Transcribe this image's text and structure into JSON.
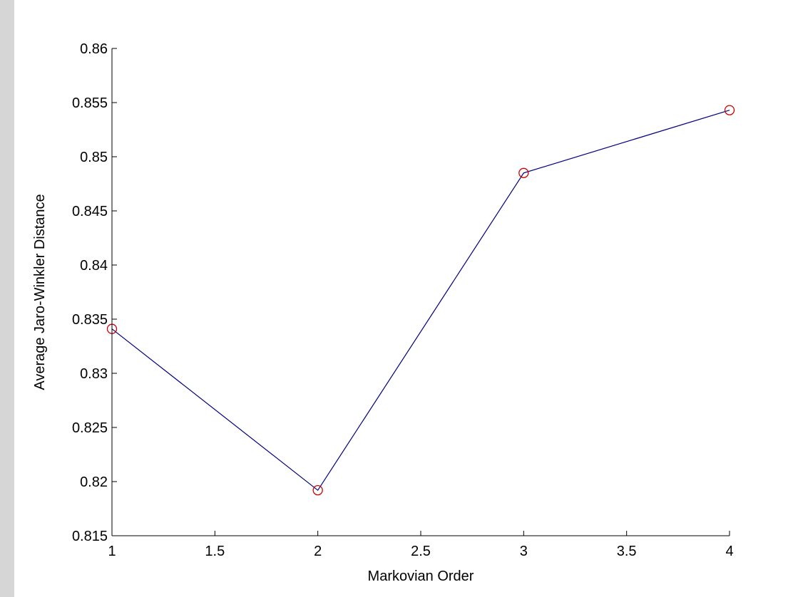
{
  "figure": {
    "background_color": "#d6d6d6",
    "plot_background_color": "#ffffff"
  },
  "chart_data": {
    "type": "line",
    "title": "",
    "xlabel": "Markovian Order",
    "ylabel": "Average Jaro-Winkler Distance",
    "xlim": [
      1,
      4
    ],
    "ylim": [
      0.815,
      0.86
    ],
    "x_ticks": [
      1,
      1.5,
      2,
      2.5,
      3,
      3.5,
      4
    ],
    "x_tick_labels": [
      "1",
      "1.5",
      "2",
      "2.5",
      "3",
      "3.5",
      "4"
    ],
    "y_ticks": [
      0.815,
      0.82,
      0.825,
      0.83,
      0.835,
      0.84,
      0.845,
      0.85,
      0.855,
      0.86
    ],
    "y_tick_labels": [
      "0.815",
      "0.82",
      "0.825",
      "0.83",
      "0.835",
      "0.84",
      "0.845",
      "0.85",
      "0.855",
      "0.86"
    ],
    "grid": false,
    "legend": "none",
    "series": [
      {
        "x": [
          1,
          2,
          3,
          4
        ],
        "values": [
          0.8341,
          0.8192,
          0.8485,
          0.8543
        ],
        "line_color": "#000080",
        "marker": "circle",
        "marker_color": "#cc0000"
      }
    ]
  }
}
